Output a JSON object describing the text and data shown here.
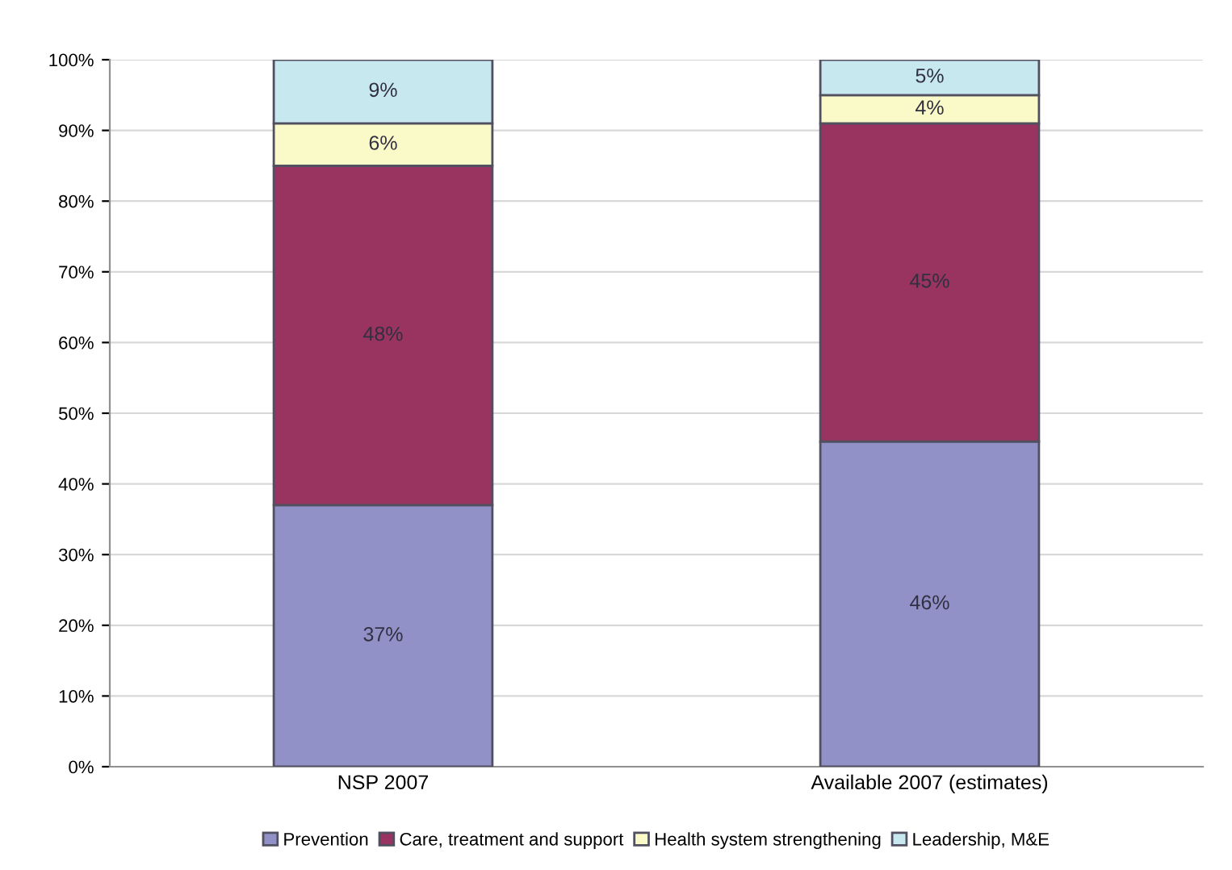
{
  "chart_data": {
    "type": "bar",
    "stacked": true,
    "categories": [
      "NSP 2007",
      "Available 2007 (estimates)"
    ],
    "series": [
      {
        "name": "Prevention",
        "color": "#9191c8",
        "values": [
          37,
          46
        ],
        "value_labels": [
          "37%",
          "46%"
        ]
      },
      {
        "name": "Care, treatment and support",
        "color": "#993360",
        "values": [
          48,
          45
        ],
        "value_labels": [
          "48%",
          "45%"
        ]
      },
      {
        "name": "Health system strengthening",
        "color": "#fafac8",
        "values": [
          6,
          4
        ],
        "value_labels": [
          "6%",
          "4%"
        ]
      },
      {
        "name": "Leadership, M&E",
        "color": "#c8e8f0",
        "values": [
          9,
          5
        ],
        "value_labels": [
          "9%",
          "5%"
        ]
      }
    ],
    "ylim": [
      0,
      100
    ],
    "yticks": [
      {
        "value": 0,
        "label": "0%"
      },
      {
        "value": 10,
        "label": "10%"
      },
      {
        "value": 20,
        "label": "20%"
      },
      {
        "value": 30,
        "label": "30%"
      },
      {
        "value": 40,
        "label": "40%"
      },
      {
        "value": 50,
        "label": "50%"
      },
      {
        "value": 60,
        "label": "60%"
      },
      {
        "value": 70,
        "label": "70%"
      },
      {
        "value": 80,
        "label": "80%"
      },
      {
        "value": 90,
        "label": "90%"
      },
      {
        "value": 100,
        "label": "100%"
      }
    ],
    "grid": "y",
    "legend": "bottom"
  }
}
